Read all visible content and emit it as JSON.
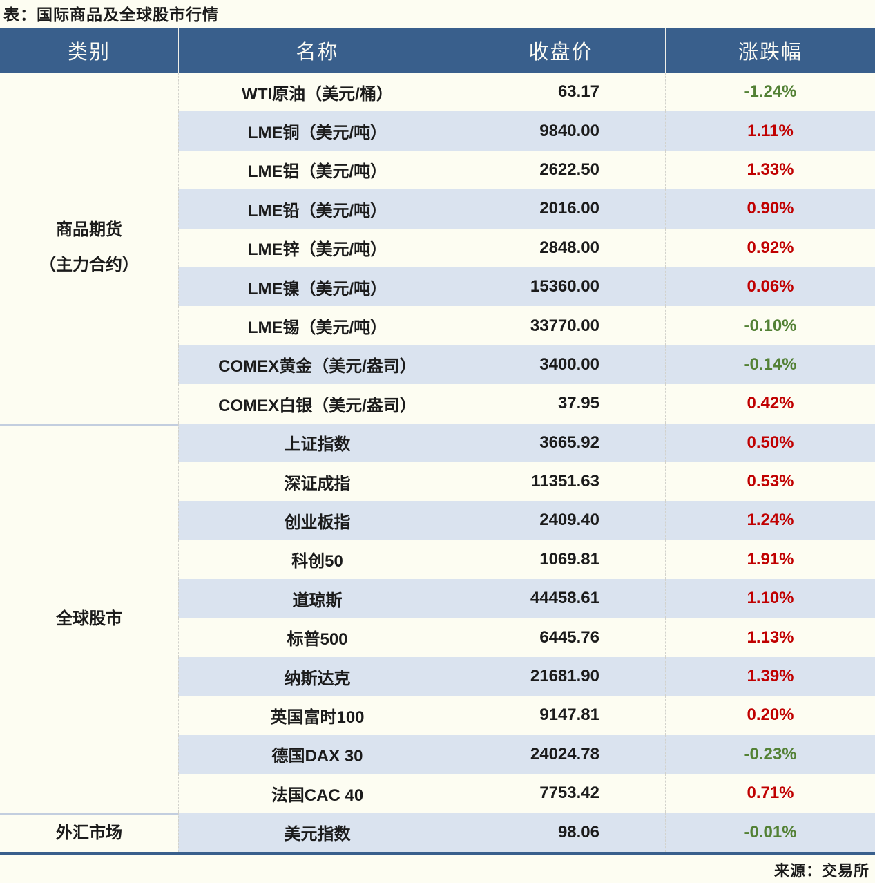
{
  "title": "表：国际商品及全球股市行情",
  "source": "来源：交易所",
  "columns": [
    "类别",
    "名称",
    "收盘价",
    "涨跌幅"
  ],
  "colors": {
    "header_bg": "#395F8C",
    "band_blue": "#DAE3EF",
    "background_cream": "#FDFDF2",
    "up_red": "#C00000",
    "down_green": "#538135",
    "bottom_border_blue": "#395F8C"
  },
  "groups": [
    {
      "category": "商品期货\n（主力合约）",
      "rows": [
        {
          "name": "WTI原油（美元/桶）",
          "close": "63.17",
          "change": "-1.24%",
          "direction": "down"
        },
        {
          "name": "LME铜（美元/吨）",
          "close": "9840.00",
          "change": "1.11%",
          "direction": "up"
        },
        {
          "name": "LME铝（美元/吨）",
          "close": "2622.50",
          "change": "1.33%",
          "direction": "up"
        },
        {
          "name": "LME铅（美元/吨）",
          "close": "2016.00",
          "change": "0.90%",
          "direction": "up"
        },
        {
          "name": "LME锌（美元/吨）",
          "close": "2848.00",
          "change": "0.92%",
          "direction": "up"
        },
        {
          "name": "LME镍（美元/吨）",
          "close": "15360.00",
          "change": "0.06%",
          "direction": "up"
        },
        {
          "name": "LME锡（美元/吨）",
          "close": "33770.00",
          "change": "-0.10%",
          "direction": "down"
        },
        {
          "name": "COMEX黄金（美元/盎司）",
          "close": "3400.00",
          "change": "-0.14%",
          "direction": "down"
        },
        {
          "name": "COMEX白银（美元/盎司）",
          "close": "37.95",
          "change": "0.42%",
          "direction": "up"
        }
      ]
    },
    {
      "category": "全球股市",
      "rows": [
        {
          "name": "上证指数",
          "close": "3665.92",
          "change": "0.50%",
          "direction": "up"
        },
        {
          "name": "深证成指",
          "close": "11351.63",
          "change": "0.53%",
          "direction": "up"
        },
        {
          "name": "创业板指",
          "close": "2409.40",
          "change": "1.24%",
          "direction": "up"
        },
        {
          "name": "科创50",
          "close": "1069.81",
          "change": "1.91%",
          "direction": "up"
        },
        {
          "name": "道琼斯",
          "close": "44458.61",
          "change": "1.10%",
          "direction": "up"
        },
        {
          "name": "标普500",
          "close": "6445.76",
          "change": "1.13%",
          "direction": "up"
        },
        {
          "name": "纳斯达克",
          "close": "21681.90",
          "change": "1.39%",
          "direction": "up"
        },
        {
          "name": "英国富时100",
          "close": "9147.81",
          "change": "0.20%",
          "direction": "up"
        },
        {
          "name": "德国DAX 30",
          "close": "24024.78",
          "change": "-0.23%",
          "direction": "down"
        },
        {
          "name": "法国CAC 40",
          "close": "7753.42",
          "change": "0.71%",
          "direction": "up"
        }
      ]
    },
    {
      "category": "外汇市场",
      "rows": [
        {
          "name": "美元指数",
          "close": "98.06",
          "change": "-0.01%",
          "direction": "down"
        }
      ]
    }
  ],
  "chart_data": {
    "type": "table",
    "title": "国际商品及全球股市行情",
    "columns": [
      "类别",
      "名称",
      "收盘价",
      "涨跌幅"
    ],
    "rows": [
      [
        "商品期货（主力合约）",
        "WTI原油（美元/桶）",
        63.17,
        "-1.24%"
      ],
      [
        "商品期货（主力合约）",
        "LME铜（美元/吨）",
        9840.0,
        "1.11%"
      ],
      [
        "商品期货（主力合约）",
        "LME铝（美元/吨）",
        2622.5,
        "1.33%"
      ],
      [
        "商品期货（主力合约）",
        "LME铅（美元/吨）",
        2016.0,
        "0.90%"
      ],
      [
        "商品期货（主力合约）",
        "LME锌（美元/吨）",
        2848.0,
        "0.92%"
      ],
      [
        "商品期货（主力合约）",
        "LME镍（美元/吨）",
        15360.0,
        "0.06%"
      ],
      [
        "商品期货（主力合约）",
        "LME锡（美元/吨）",
        33770.0,
        "-0.10%"
      ],
      [
        "商品期货（主力合约）",
        "COMEX黄金（美元/盎司）",
        3400.0,
        "-0.14%"
      ],
      [
        "商品期货（主力合约）",
        "COMEX白银（美元/盎司）",
        37.95,
        "0.42%"
      ],
      [
        "全球股市",
        "上证指数",
        3665.92,
        "0.50%"
      ],
      [
        "全球股市",
        "深证成指",
        11351.63,
        "0.53%"
      ],
      [
        "全球股市",
        "创业板指",
        2409.4,
        "1.24%"
      ],
      [
        "全球股市",
        "科创50",
        1069.81,
        "1.91%"
      ],
      [
        "全球股市",
        "道琼斯",
        44458.61,
        "1.10%"
      ],
      [
        "全球股市",
        "标普500",
        6445.76,
        "1.13%"
      ],
      [
        "全球股市",
        "纳斯达克",
        21681.9,
        "1.39%"
      ],
      [
        "全球股市",
        "英国富时100",
        9147.81,
        "0.20%"
      ],
      [
        "全球股市",
        "德国DAX 30",
        24024.78,
        "-0.23%"
      ],
      [
        "全球股市",
        "法国CAC 40",
        7753.42,
        "0.71%"
      ],
      [
        "外汇市场",
        "美元指数",
        98.06,
        "-0.01%"
      ]
    ],
    "notes": "红色=上涨, 绿色=下跌; 来源：交易所"
  }
}
